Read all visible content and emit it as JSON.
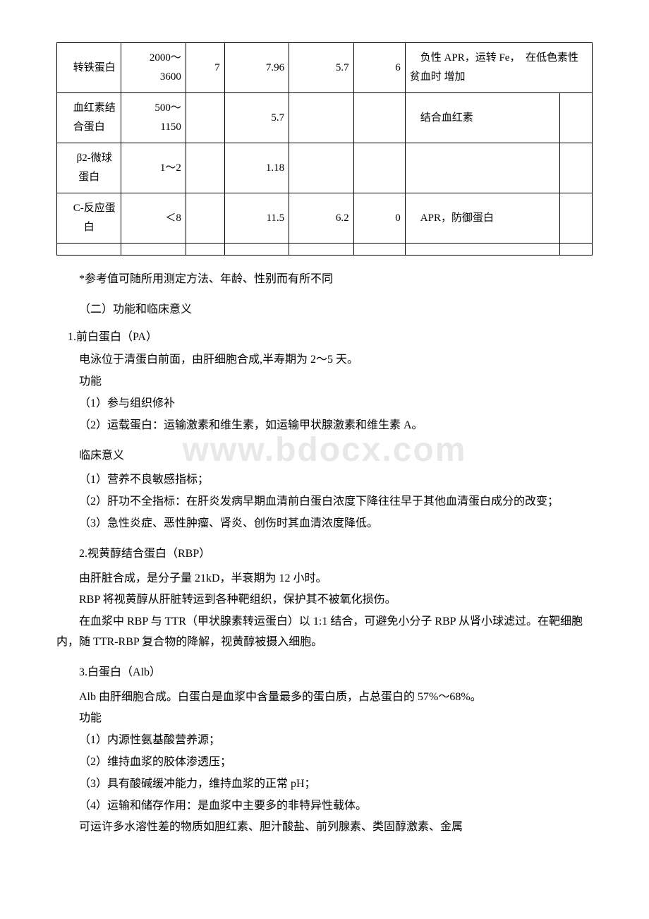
{
  "watermark": "www.bdocx.com",
  "table": {
    "rows": [
      {
        "c1": "　转铁蛋白",
        "c2": "　2000～3600",
        "c3": "　7",
        "c4": "　7.96",
        "c5": "　5.7",
        "c6": "　6",
        "c7": "　负性 APR，运转 Fe，　在低色素性贫血时 增加",
        "c8": ""
      },
      {
        "c1": "　血红素结合蛋白",
        "c2": "　500～1150",
        "c3": "",
        "c4": "　5.7",
        "c5": "",
        "c6": "",
        "c7": "　结合血红素",
        "c8": ""
      },
      {
        "c1": "　β2-微球蛋白",
        "c2": "　1～2",
        "c3": "",
        "c4": "　1.18",
        "c5": "",
        "c6": "",
        "c7": "",
        "c8": ""
      },
      {
        "c1": "　C-反应蛋白",
        "c2": "　＜8",
        "c3": "",
        "c4": "　11.5",
        "c5": "　6.2",
        "c6": "　0",
        "c7": "　APR，防御蛋白",
        "c8": ""
      },
      {
        "c1": "",
        "c2": "",
        "c3": "",
        "c4": "",
        "c5": "",
        "c6": "",
        "c7": "",
        "c8": ""
      }
    ]
  },
  "note": "*参考值可随所用测定方法、年龄、性别而有所不同",
  "section2": {
    "title": "（二）功能和临床意义",
    "item1": {
      "heading": "1.前白蛋白（PA）",
      "line1": "电泳位于清蛋白前面，由肝细胞合成,半寿期为 2～5 天。",
      "line2": "功能",
      "p1": "（1）参与组织修补",
      "p2": "（2）运载蛋白：运输激素和维生素，如运输甲状腺激素和维生素 A。",
      "line3": "临床意义",
      "p3": "（1）营养不良敏感指标；",
      "p4": "（2）肝功不全指标：在肝炎发病早期血清前白蛋白浓度下降往往早于其他血清蛋白成分的改变；",
      "p5": "（3）急性炎症、恶性肿瘤、肾炎、创伤时其血清浓度降低。"
    },
    "item2": {
      "heading": "2.视黄醇结合蛋白（RBP）",
      "line1": "由肝脏合成，是分子量 21kD，半衰期为 12 小时。",
      "line2": "RBP 将视黄醇从肝脏转运到各种靶组织，保护其不被氧化损伤。",
      "line3": "在血浆中 RBP 与 TTR（甲状腺素转运蛋白）以 1:1 结合，可避免小分子 RBP 从肾小球滤过。在靶细胞内，随 TTR-RBP 复合物的降解，视黄醇被摄入细胞。"
    },
    "item3": {
      "heading": "3.白蛋白（Alb）",
      "line1": "Alb 由肝细胞合成。白蛋白是血浆中含量最多的蛋白质，占总蛋白的 57%～68%。",
      "line2": "功能",
      "p1": "（1）内源性氨基酸营养源；",
      "p2": "（2）维持血浆的胶体渗透压；",
      "p3": "（3）具有酸碱缓冲能力，维持血浆的正常 pH；",
      "p4": "（4）运输和储存作用：是血浆中主要多的非特异性载体。",
      "line3": "可运许多水溶性差的物质如胆红素、胆汁酸盐、前列腺素、类固醇激素、金属"
    }
  }
}
